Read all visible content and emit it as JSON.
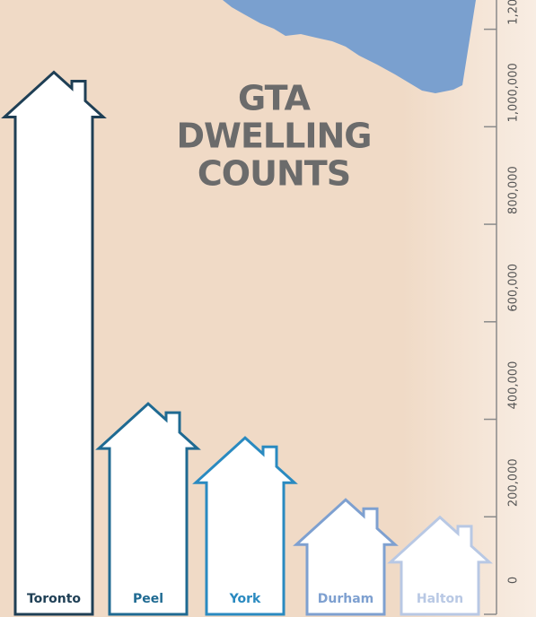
{
  "chart_data": {
    "type": "house-bar",
    "title_lines": [
      "GTA",
      "DWELLING",
      "COUNTS"
    ],
    "categories": [
      "Toronto",
      "Peel",
      "York",
      "Durham",
      "Halton"
    ],
    "values": [
      1112000,
      432000,
      362000,
      235000,
      199000
    ],
    "colors": [
      "#1f3f55",
      "#1f6a92",
      "#2a8ac0",
      "#7ea0d0",
      "#b8c8e4"
    ],
    "ylim": [
      0,
      1260000
    ],
    "yticks": [
      0,
      {
        "value": 200000,
        "label": "200,000"
      },
      {
        "value": 400000,
        "label": "400,000"
      },
      {
        "value": 600000,
        "label": "600,000"
      },
      {
        "value": 800000,
        "label": "800,000"
      },
      {
        "value": 1000000,
        "label": "1,000,000"
      },
      {
        "value": 1200000,
        "label": "1,200,000"
      }
    ]
  }
}
